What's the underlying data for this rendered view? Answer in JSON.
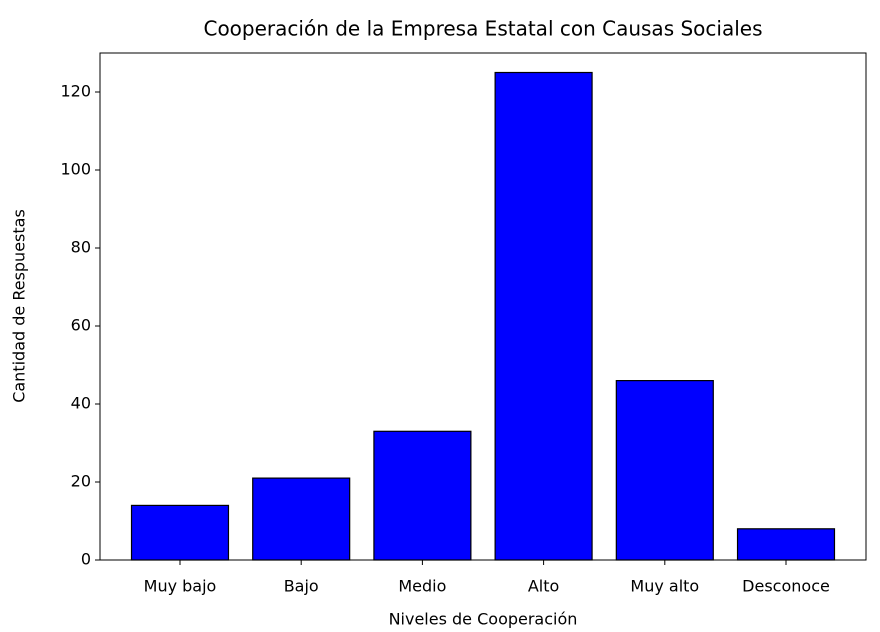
{
  "chart_data": {
    "type": "bar",
    "title": "Cooperación de la Empresa Estatal con Causas Sociales",
    "x_label": "Niveles de Cooperación",
    "y_label": "Cantidad de Respuestas",
    "categories": [
      "Muy bajo",
      "Bajo",
      "Medio",
      "Alto",
      "Muy alto",
      "Desconoce"
    ],
    "values": [
      14,
      21,
      33,
      125,
      46,
      8
    ],
    "color": "#0000ff",
    "edgecolor": "#000000",
    "ylim": [
      0,
      130
    ],
    "yticks": [
      0,
      20,
      40,
      60,
      80,
      100,
      120
    ],
    "grid": false
  }
}
